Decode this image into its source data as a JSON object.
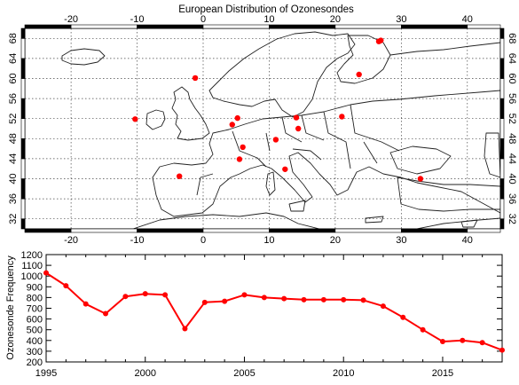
{
  "chart_data": [
    {
      "type": "map",
      "title": "European Distribution of Ozonesondes",
      "xlim": [
        -27,
        45
      ],
      "ylim": [
        30,
        70
      ],
      "x_ticks": [
        -20,
        -10,
        0,
        10,
        20,
        30,
        40
      ],
      "y_ticks": [
        32,
        36,
        40,
        44,
        48,
        52,
        56,
        60,
        64,
        68
      ],
      "grid": true,
      "grid_style": "dotted",
      "marker_color": "#ff0000",
      "points": [
        {
          "lon": 26.6,
          "lat": 67.4
        },
        {
          "lon": 26.9,
          "lat": 67.6
        },
        {
          "lon": -1.2,
          "lat": 60.1
        },
        {
          "lon": 23.6,
          "lat": 60.8
        },
        {
          "lon": -10.3,
          "lat": 51.9
        },
        {
          "lon": 5.2,
          "lat": 52.1
        },
        {
          "lon": 4.4,
          "lat": 50.8
        },
        {
          "lon": 14.1,
          "lat": 52.2
        },
        {
          "lon": 21.0,
          "lat": 52.4
        },
        {
          "lon": 14.4,
          "lat": 50.0
        },
        {
          "lon": 11.0,
          "lat": 47.8
        },
        {
          "lon": 6.0,
          "lat": 46.3
        },
        {
          "lon": 5.5,
          "lat": 43.9
        },
        {
          "lon": 12.4,
          "lat": 41.9
        },
        {
          "lon": -3.6,
          "lat": 40.5
        },
        {
          "lon": 32.9,
          "lat": 40.0
        }
      ]
    },
    {
      "type": "line",
      "xlabel": "",
      "ylabel": "Ozonesonde Frequency",
      "xlim": [
        1995,
        2018
      ],
      "ylim": [
        200,
        1200
      ],
      "x_ticks": [
        1995,
        2000,
        2005,
        2010,
        2015
      ],
      "y_ticks": [
        200,
        300,
        400,
        500,
        600,
        700,
        800,
        900,
        1000,
        1100,
        1200
      ],
      "color": "#ff0000",
      "x": [
        1995,
        1996,
        1997,
        1998,
        1999,
        2000,
        2001,
        2002,
        2003,
        2004,
        2005,
        2006,
        2007,
        2008,
        2009,
        2010,
        2011,
        2012,
        2013,
        2014,
        2015,
        2016,
        2017,
        2018
      ],
      "y": [
        1030,
        910,
        740,
        650,
        810,
        835,
        825,
        510,
        755,
        765,
        825,
        800,
        790,
        780,
        780,
        780,
        775,
        720,
        615,
        500,
        390,
        400,
        380,
        310
      ]
    }
  ]
}
